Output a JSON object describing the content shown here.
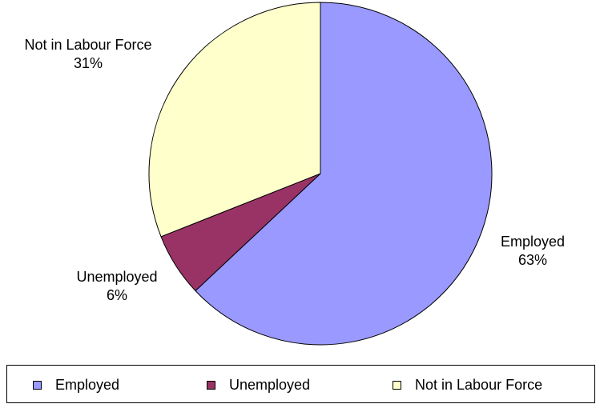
{
  "chart_data": {
    "type": "pie",
    "title": "",
    "start_angle_deg": 0,
    "direction": "clockwise",
    "slices": [
      {
        "category": "Employed",
        "value": 63,
        "display": "63%",
        "color": "#9999FF"
      },
      {
        "category": "Unemployed",
        "value": 6,
        "display": "6%",
        "color": "#993366"
      },
      {
        "category": "Not in Labour Force",
        "value": 31,
        "display": "31%",
        "color": "#FFFFCC"
      }
    ],
    "legend": {
      "placement": "bottom",
      "entries": [
        "Employed",
        "Unemployed",
        "Not in Labour Force"
      ]
    },
    "edge_color": "#000000"
  }
}
